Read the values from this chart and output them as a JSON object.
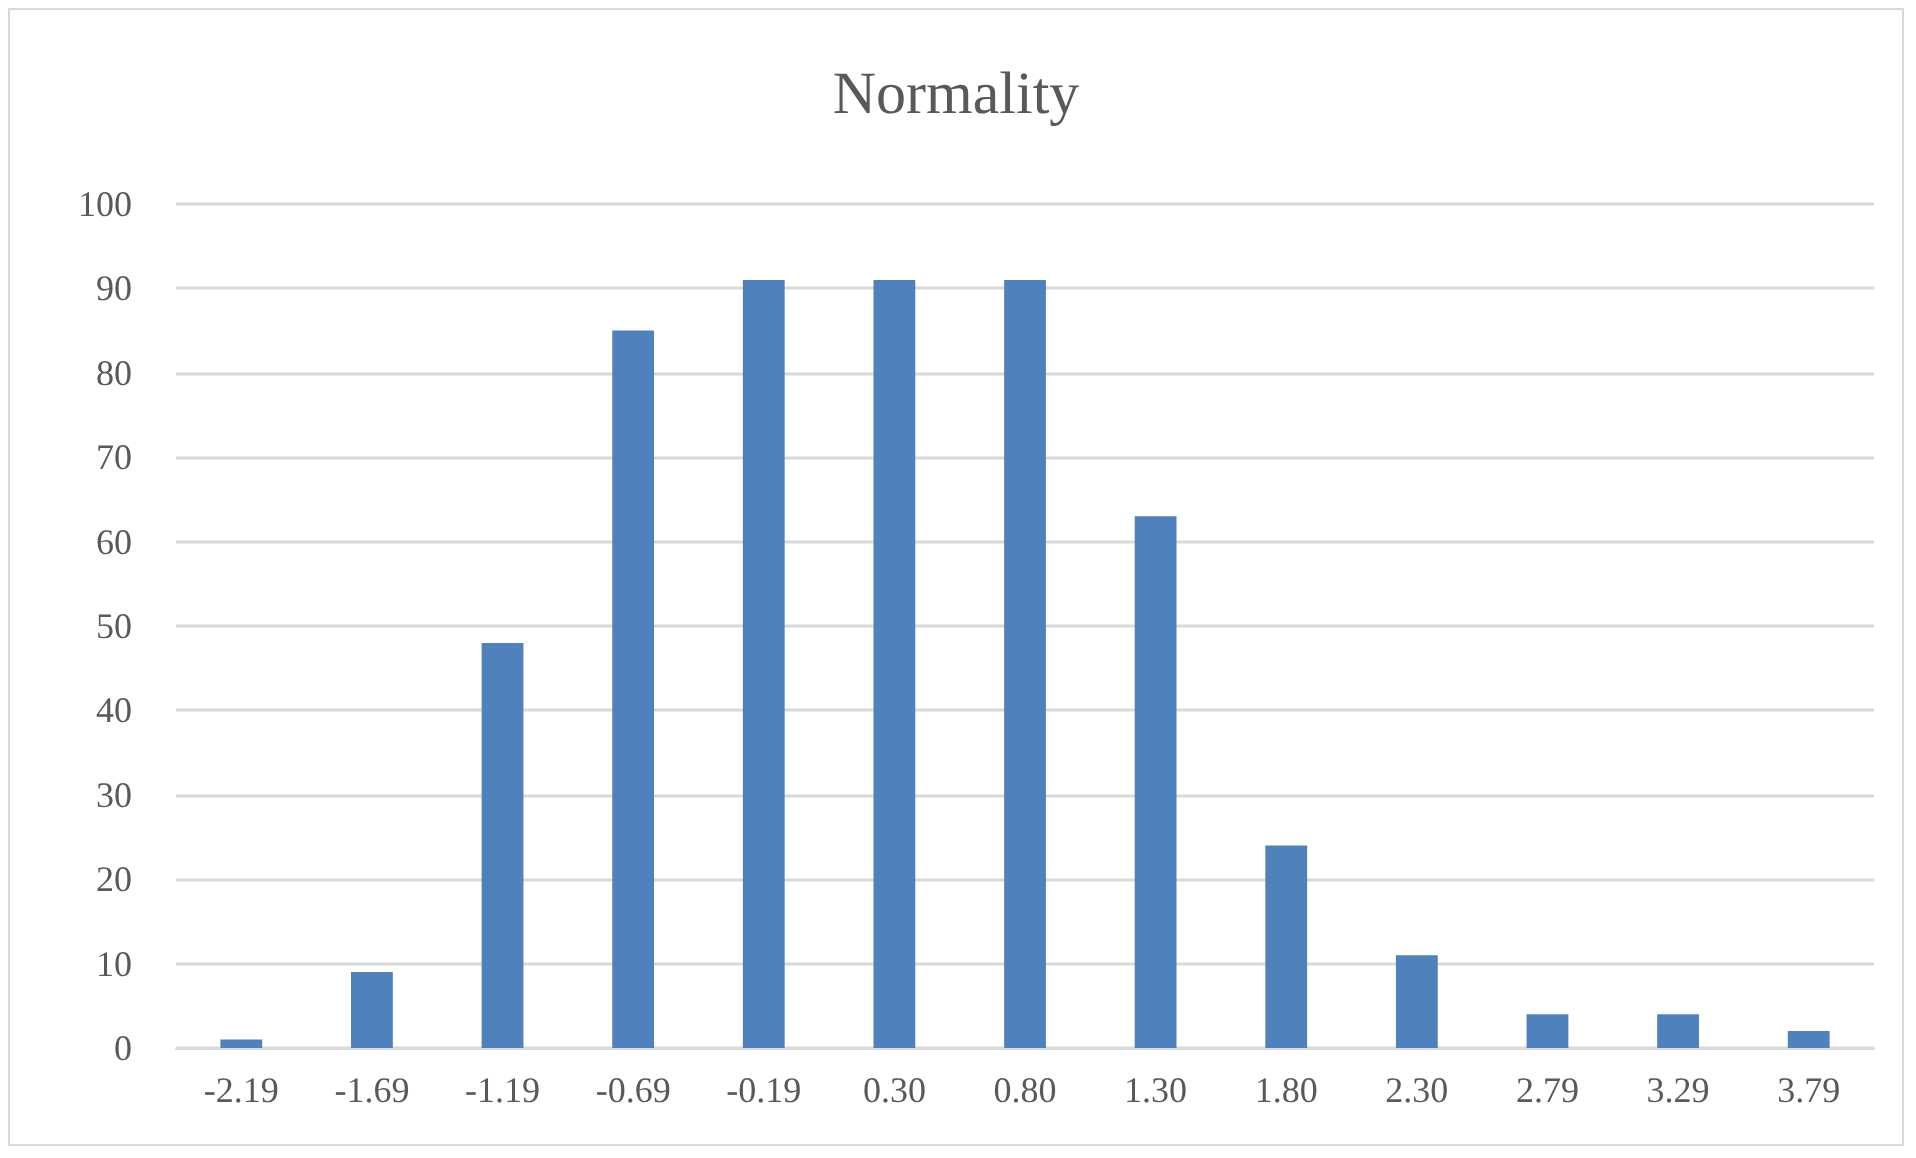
{
  "chart_data": {
    "type": "bar",
    "title": "Normality",
    "categories": [
      "-2.19",
      "-1.69",
      "-1.19",
      "-0.69",
      "-0.19",
      "0.30",
      "0.80",
      "1.30",
      "1.80",
      "2.30",
      "2.79",
      "3.29",
      "3.79"
    ],
    "values": [
      1,
      9,
      48,
      85,
      91,
      91,
      91,
      63,
      24,
      11,
      4,
      4,
      2
    ],
    "color": "#4f81bd",
    "ylim": [
      0,
      100
    ],
    "yticks": [
      0,
      10,
      20,
      30,
      40,
      50,
      60,
      70,
      80,
      90,
      100
    ],
    "grid": "y"
  }
}
